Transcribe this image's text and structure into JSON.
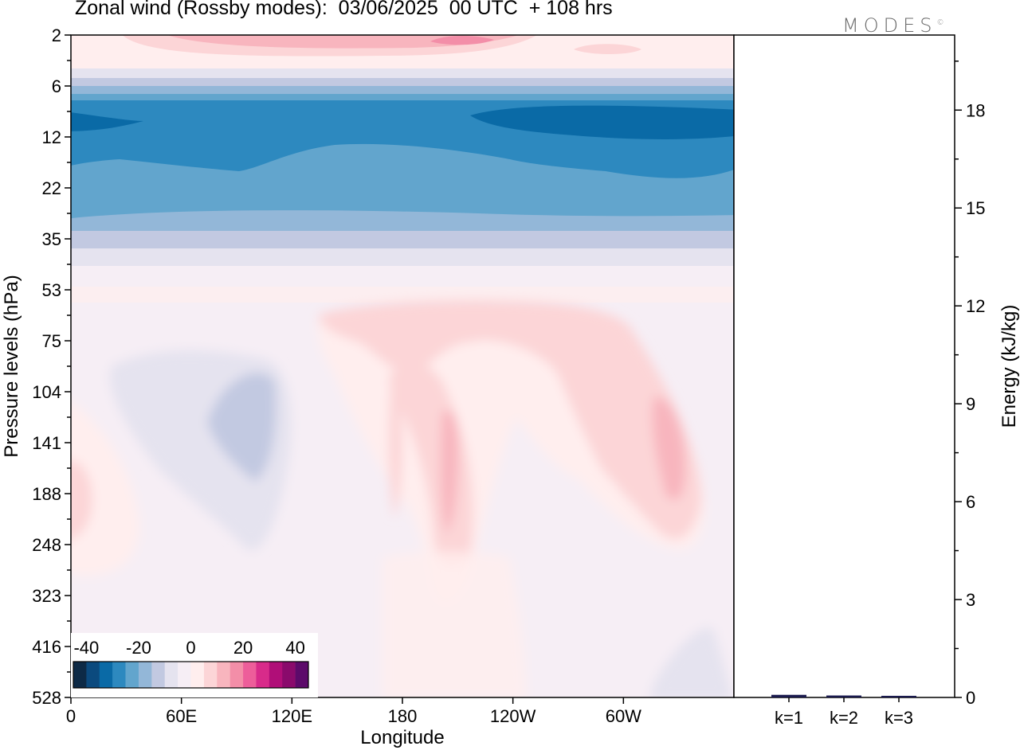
{
  "chart_data": [
    {
      "type": "heatmap",
      "title": "Zonal wind (Rossby modes):  03/06/2025  00 UTC  + 108 hrs",
      "xlabel": "Longitude",
      "ylabel": "Pressure levels (hPa)",
      "x_ticks": [
        "0",
        "60E",
        "120E",
        "180",
        "120W",
        "60W"
      ],
      "y_ticks": [
        "2",
        "6",
        "12",
        "22",
        "35",
        "53",
        "75",
        "104",
        "141",
        "188",
        "248",
        "323",
        "416",
        "528"
      ],
      "colorbar": {
        "tick_labels": [
          "-40",
          "-20",
          "0",
          "20",
          "40"
        ],
        "range": [
          -45,
          45
        ],
        "colors": [
          "#0d2a46",
          "#0b4a7e",
          "#0a6aa6",
          "#2d89bf",
          "#62a5cd",
          "#93b7d8",
          "#c2c9e1",
          "#e5e3ef",
          "#f6eef5",
          "#ffeeee",
          "#fcd5d7",
          "#f8b5be",
          "#f38ea8",
          "#ed5e9a",
          "#d82b8a",
          "#b00e78",
          "#8a0a6c",
          "#5c0a6a"
        ]
      },
      "levels_hPa": [
        2,
        4,
        6,
        9,
        12,
        17,
        22,
        28,
        35,
        44,
        53,
        64,
        75,
        90,
        104,
        122,
        141,
        164,
        188,
        218,
        248,
        285,
        323,
        370,
        416,
        472,
        528
      ]
    },
    {
      "type": "bar",
      "categories": [
        "k=1",
        "k=2",
        "k=3"
      ],
      "values": [
        0.08,
        0.06,
        0.05
      ],
      "ylabel": "Energy (kJ/kg)",
      "ylim": [
        0,
        20.3
      ],
      "y_ticks": [
        "0",
        "3",
        "6",
        "9",
        "12",
        "15",
        "18"
      ]
    }
  ],
  "header": {
    "title": "Zonal wind (Rossby modes):  03/06/2025  00 UTC  + 108 hrs",
    "logo_text": "MODES",
    "logo_mark": "©"
  }
}
